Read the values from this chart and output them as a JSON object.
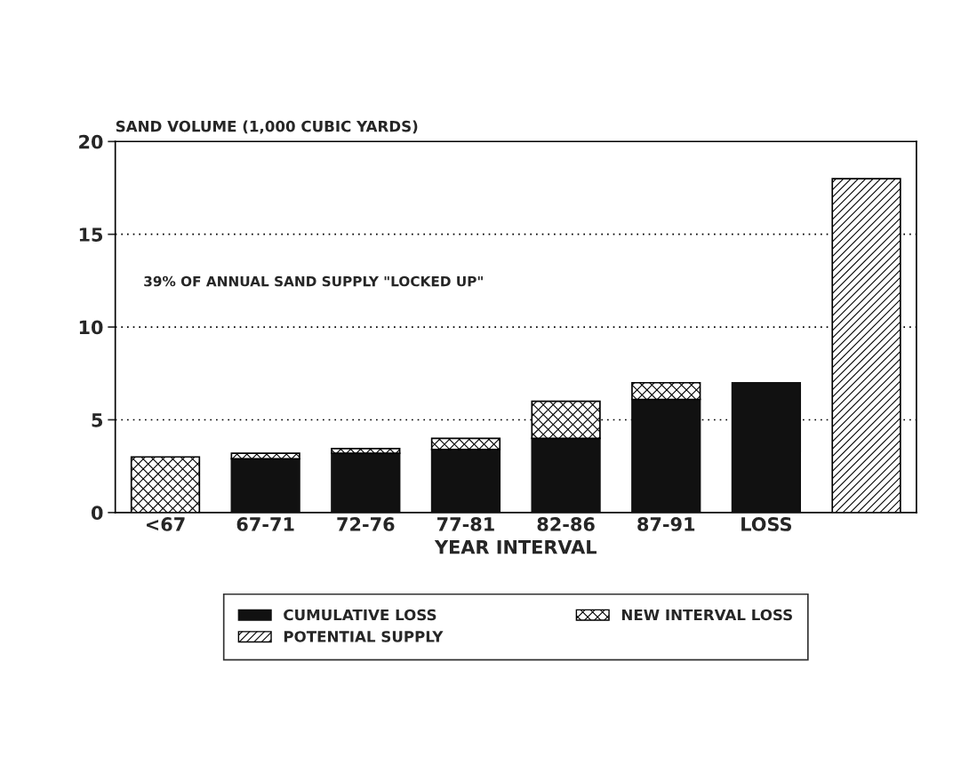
{
  "chart_data": {
    "type": "bar",
    "stacked": true,
    "ylabel": "SAND VOLUME (1,000 CUBIC YARDS)",
    "xlabel": "YEAR INTERVAL",
    "categories": [
      "<67",
      "67-71",
      "72-76",
      "77-81",
      "82-86",
      "87-91",
      "LOSS",
      null
    ],
    "series": [
      {
        "name": "CUMULATIVE LOSS",
        "color": "#111111",
        "values": [
          null,
          2.9,
          3.2,
          3.4,
          4.0,
          6.1,
          7.0,
          null
        ]
      },
      {
        "name": "NEW INTERVAL LOSS",
        "color": "#000000",
        "values": [
          3.0,
          0.3,
          0.25,
          0.6,
          2.0,
          0.9,
          null,
          null
        ]
      },
      {
        "name": "POTENTIAL SUPPLY",
        "color": "#000000",
        "values": [
          null,
          null,
          null,
          null,
          null,
          null,
          null,
          18.0
        ]
      }
    ],
    "ylim": [
      0,
      20
    ],
    "yticks": [
      0,
      5,
      10,
      15,
      20
    ],
    "grid": "y",
    "legend": "bottom",
    "annotations": [
      "39% OF ANNUAL SAND SUPPLY \"LOCKED UP\""
    ]
  }
}
